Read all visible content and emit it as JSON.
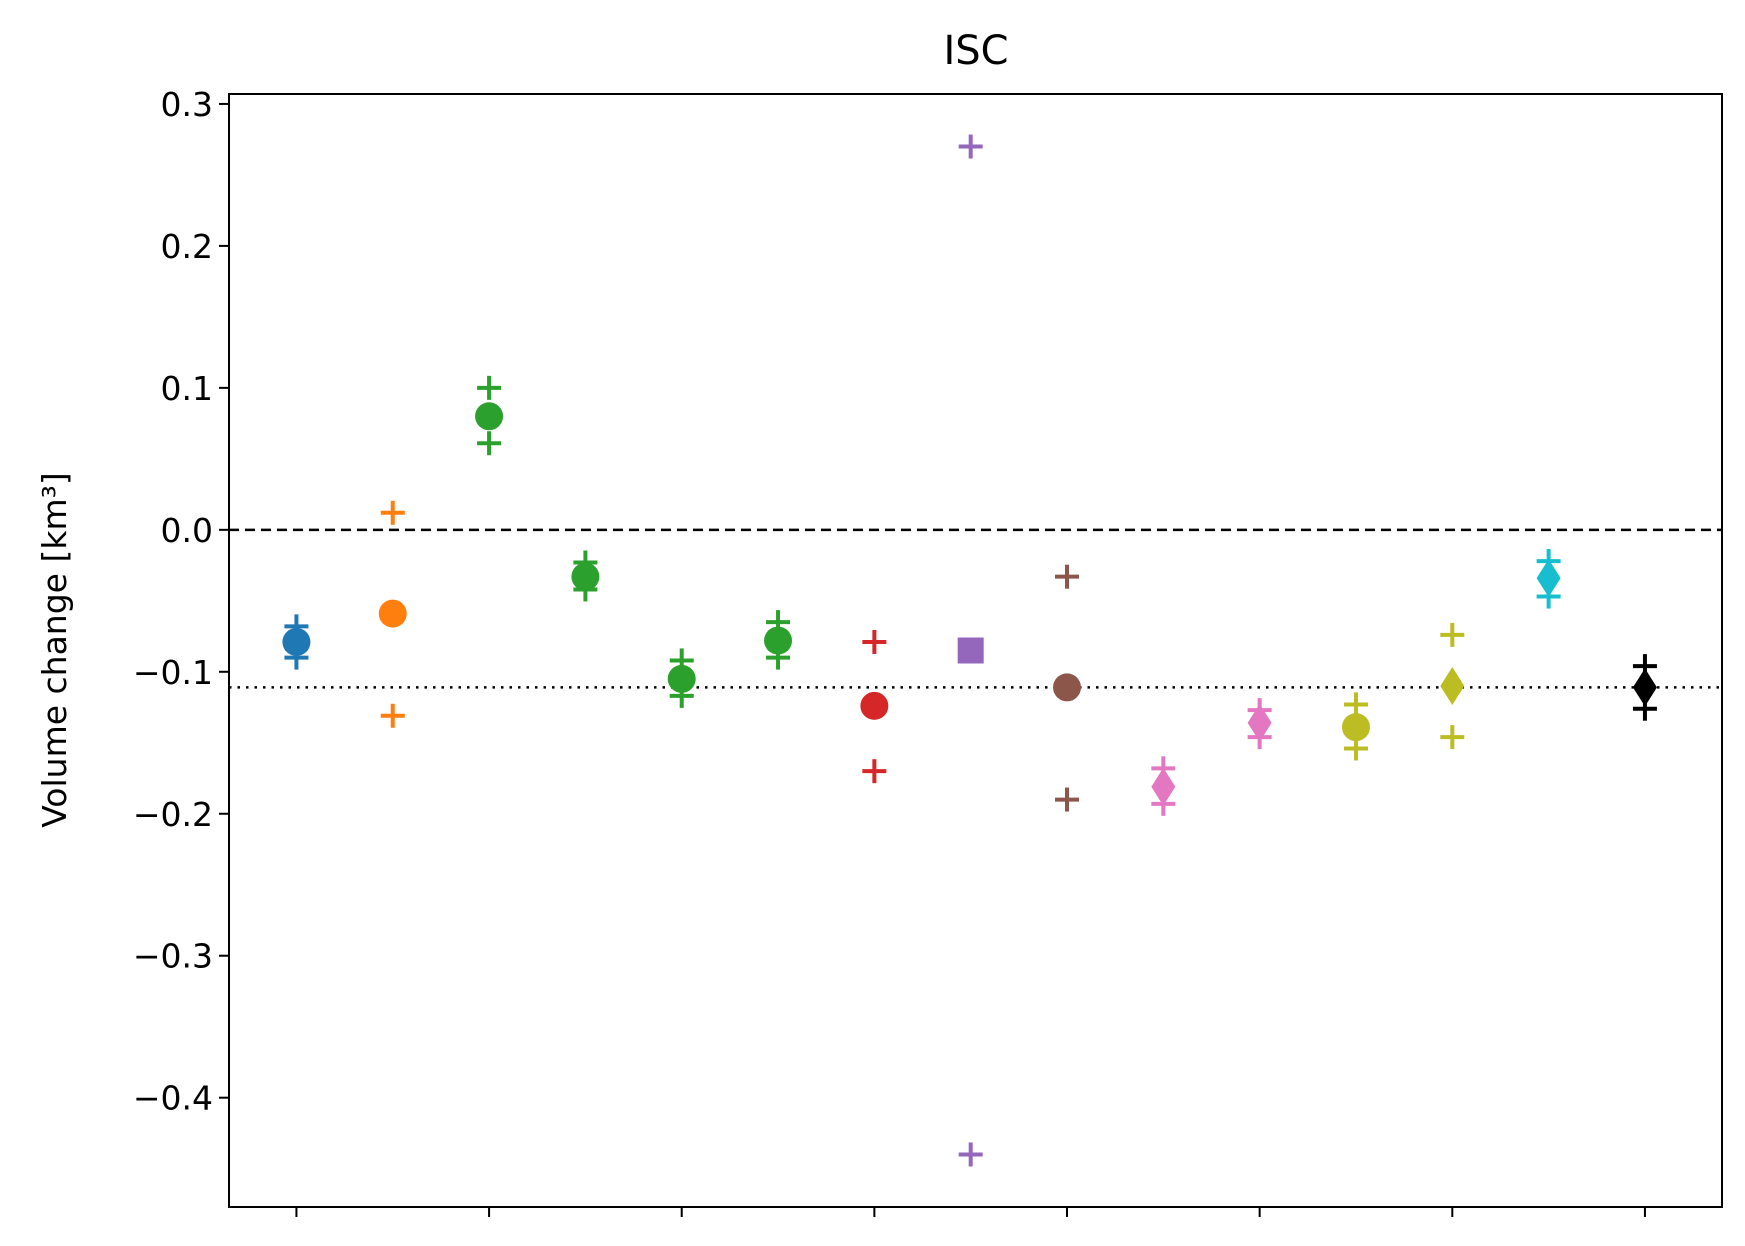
{
  "chart_data": {
    "type": "scatter",
    "title": "ISC",
    "xlabel": "",
    "ylabel": "Volume change [km³]",
    "ylim": [
      -0.477,
      0.307
    ],
    "yticks": [
      0.3,
      0.2,
      0.1,
      0.0,
      -0.1,
      -0.2,
      -0.3,
      -0.4
    ],
    "ytick_labels": [
      "0.3",
      "0.2",
      "0.1",
      "0.0",
      "−0.1",
      "−0.2",
      "−0.3",
      "−0.4"
    ],
    "xticks": [
      1,
      3,
      5,
      7,
      9,
      11,
      13,
      15
    ],
    "xlim": [
      0.3,
      15.8
    ],
    "xtick_labels_visible": false,
    "grid": false,
    "reference_lines": [
      {
        "y": 0.0,
        "style": "dashed",
        "color": "#000000"
      },
      {
        "y": -0.111,
        "style": "dotted",
        "color": "#000000"
      }
    ],
    "series": [
      {
        "x": 1,
        "value": -0.079,
        "upper": -0.068,
        "lower": -0.09,
        "marker": "circle",
        "color": "#1f77b4"
      },
      {
        "x": 2,
        "value": -0.059,
        "upper": 0.012,
        "lower": -0.131,
        "marker": "circle",
        "color": "#ff7f0e"
      },
      {
        "x": 3,
        "value": 0.08,
        "upper": 0.1,
        "lower": 0.061,
        "marker": "circle",
        "color": "#2ca02c"
      },
      {
        "x": 4,
        "value": -0.033,
        "upper": -0.023,
        "lower": -0.042,
        "marker": "circle",
        "color": "#2ca02c"
      },
      {
        "x": 5,
        "value": -0.105,
        "upper": -0.092,
        "lower": -0.117,
        "marker": "circle",
        "color": "#2ca02c"
      },
      {
        "x": 6,
        "value": -0.078,
        "upper": -0.065,
        "lower": -0.09,
        "marker": "circle",
        "color": "#2ca02c"
      },
      {
        "x": 7,
        "value": -0.124,
        "upper": -0.079,
        "lower": -0.17,
        "marker": "circle",
        "color": "#d62728"
      },
      {
        "x": 8,
        "value": -0.085,
        "upper": 0.27,
        "lower": -0.44,
        "marker": "square",
        "color": "#9467bd"
      },
      {
        "x": 9,
        "value": -0.111,
        "upper": -0.033,
        "lower": -0.19,
        "marker": "circle",
        "color": "#8c564b"
      },
      {
        "x": 10,
        "value": -0.181,
        "upper": -0.168,
        "lower": -0.193,
        "marker": "diamond",
        "color": "#e377c2"
      },
      {
        "x": 11,
        "value": -0.136,
        "upper": -0.127,
        "lower": -0.146,
        "marker": "diamond",
        "color": "#e377c2"
      },
      {
        "x": 12,
        "value": -0.139,
        "upper": -0.123,
        "lower": -0.154,
        "marker": "circle",
        "color": "#bcbd22"
      },
      {
        "x": 13,
        "value": -0.11,
        "upper": -0.074,
        "lower": -0.146,
        "marker": "diamond",
        "color": "#bcbd22"
      },
      {
        "x": 14,
        "value": -0.034,
        "upper": -0.022,
        "lower": -0.047,
        "marker": "diamond",
        "color": "#17becf"
      },
      {
        "x": 15,
        "value": -0.111,
        "upper": -0.096,
        "lower": -0.126,
        "marker": "diamond",
        "color": "#000000"
      }
    ]
  }
}
